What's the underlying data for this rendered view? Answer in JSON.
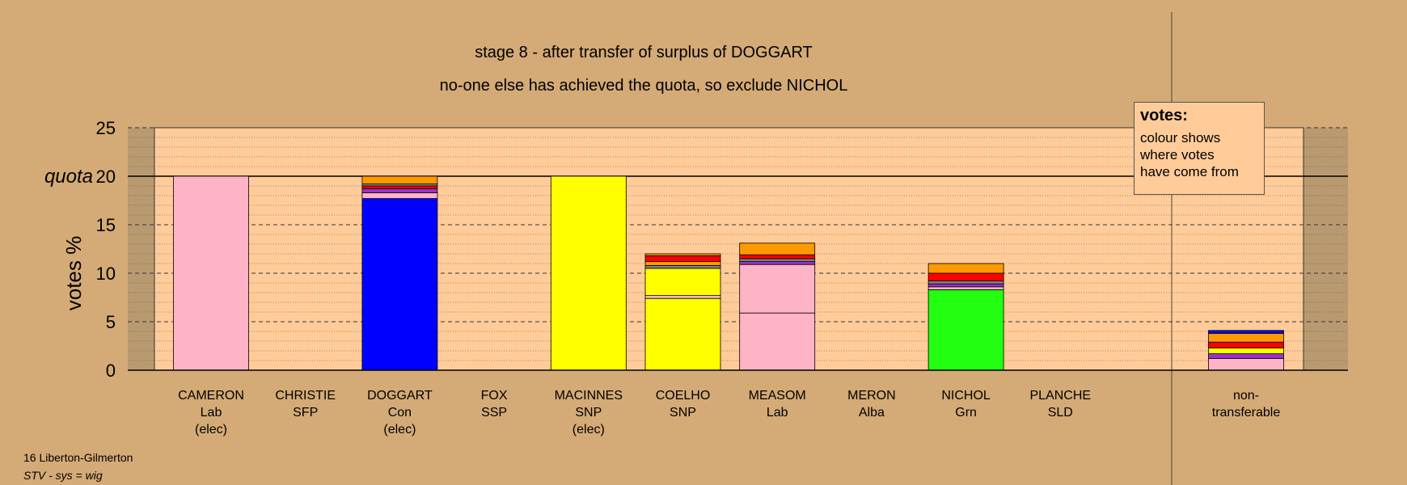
{
  "chart_data": {
    "type": "bar",
    "stacked": true,
    "title": "stage 8 - after transfer of surplus of DOGGART",
    "subtitle": "no-one else has achieved the quota, so exclude NICHOL",
    "ylabel": "votes %",
    "ylim": [
      0,
      25
    ],
    "yticks": [
      "0",
      "5",
      "10",
      "15",
      "20",
      "25"
    ],
    "quota": 20,
    "quota_label": "quota",
    "categories": [
      {
        "name": "CAMERON",
        "party": "Lab",
        "note": "(elec)"
      },
      {
        "name": "CHRISTIE",
        "party": "SFP",
        "note": ""
      },
      {
        "name": "DOGGART",
        "party": "Con",
        "note": "(elec)"
      },
      {
        "name": "FOX",
        "party": "SSP",
        "note": ""
      },
      {
        "name": "MACINNES",
        "party": "SNP",
        "note": "(elec)"
      },
      {
        "name": "COELHO",
        "party": "SNP",
        "note": ""
      },
      {
        "name": "MEASOM",
        "party": "Lab",
        "note": ""
      },
      {
        "name": "MERON",
        "party": "Alba",
        "note": ""
      },
      {
        "name": "NICHOL",
        "party": "Grn",
        "note": ""
      },
      {
        "name": "PLANCHE",
        "party": "SLD",
        "note": ""
      }
    ],
    "nontransferable_label": [
      "non-",
      "transferable"
    ],
    "stacks": [
      [
        {
          "value": 20.0,
          "color": "#ffb3c6"
        }
      ],
      [],
      [
        {
          "value": 17.7,
          "color": "#0000ff"
        },
        {
          "value": 0.6,
          "color": "#ffb3c6"
        },
        {
          "value": 0.4,
          "color": "#9932cc"
        },
        {
          "value": 0.3,
          "color": "#ff0000"
        },
        {
          "value": 0.2,
          "color": "#808080"
        },
        {
          "value": 0.8,
          "color": "#ff9900"
        }
      ],
      [],
      [
        {
          "value": 20.0,
          "color": "#ffff00"
        }
      ],
      [
        {
          "value": 7.4,
          "color": "#ffff00"
        },
        {
          "value": 0.3,
          "color": "#ffb3c6"
        },
        {
          "value": 2.8,
          "color": "#ffff00"
        },
        {
          "value": 0.3,
          "color": "#808080"
        },
        {
          "value": 0.4,
          "color": "#ff9900"
        },
        {
          "value": 0.6,
          "color": "#ff0000"
        },
        {
          "value": 0.2,
          "color": "#ff9900"
        }
      ],
      [
        {
          "value": 5.9,
          "color": "#ffb3c6"
        },
        {
          "value": 5.0,
          "color": "#ffb3c6"
        },
        {
          "value": 0.3,
          "color": "#9932cc"
        },
        {
          "value": 0.3,
          "color": "#808080"
        },
        {
          "value": 0.4,
          "color": "#ff0000"
        },
        {
          "value": 1.2,
          "color": "#ff9900"
        }
      ],
      [],
      [
        {
          "value": 8.3,
          "color": "#22ff11"
        },
        {
          "value": 0.3,
          "color": "#ffb3c6"
        },
        {
          "value": 0.3,
          "color": "#9932cc"
        },
        {
          "value": 0.3,
          "color": "#808080"
        },
        {
          "value": 0.8,
          "color": "#ff0000"
        },
        {
          "value": 1.0,
          "color": "#ff9900"
        }
      ],
      []
    ],
    "nontransferable": [
      {
        "value": 1.2,
        "color": "#ffb3c6"
      },
      {
        "value": 0.5,
        "color": "#9932cc"
      },
      {
        "value": 0.6,
        "color": "#ffff00"
      },
      {
        "value": 0.6,
        "color": "#ff0000"
      },
      {
        "value": 0.9,
        "color": "#ff9900"
      },
      {
        "value": 0.3,
        "color": "#0000ff"
      }
    ]
  },
  "legend": {
    "title": "votes:",
    "lines": [
      "colour shows",
      "where votes",
      "have come from"
    ]
  },
  "footer": {
    "area": "16 Liberton-Gilmerton",
    "system": "STV - sys = wig"
  }
}
